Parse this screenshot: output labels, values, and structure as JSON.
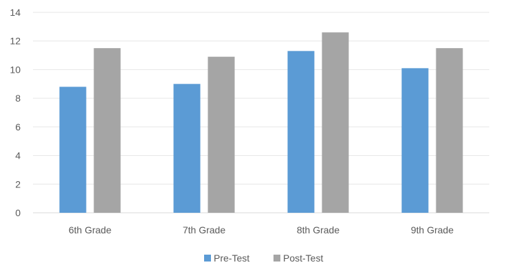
{
  "chart_data": {
    "type": "bar",
    "categories": [
      "6th Grade",
      "7th Grade",
      "8th Grade",
      "9th Grade"
    ],
    "series": [
      {
        "name": "Pre-Test",
        "values": [
          8.8,
          9.0,
          11.3,
          10.1
        ],
        "color": "#5b9bd5"
      },
      {
        "name": "Post-Test",
        "values": [
          11.5,
          10.9,
          12.6,
          11.5
        ],
        "color": "#a5a5a5"
      }
    ],
    "yticks": [
      "0",
      "2",
      "4",
      "6",
      "8",
      "10",
      "12",
      "14"
    ],
    "ylim": [
      0,
      14
    ],
    "grid": true,
    "legend_position": "bottom",
    "title": "",
    "xlabel": "",
    "ylabel": ""
  }
}
